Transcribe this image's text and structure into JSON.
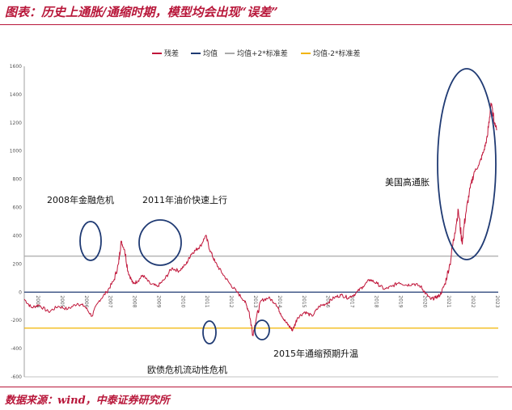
{
  "title": "图表：历史上通胀/通缩时期，模型均会出现“误差”",
  "source": "数据来源：wind，中泰证券研究所",
  "chart_data": {
    "type": "line",
    "ylim": [
      -600,
      1600
    ],
    "yticks": [
      -600,
      -400,
      -200,
      0,
      200,
      400,
      600,
      800,
      1000,
      1200,
      1400,
      1600
    ],
    "xlim": [
      2004,
      2023.6
    ],
    "xticks": [
      2004,
      2005,
      2006,
      2007,
      2008,
      2009,
      2010,
      2011,
      2012,
      2013,
      2014,
      2015,
      2016,
      2017,
      2018,
      2019,
      2020,
      2021,
      2022,
      2023
    ],
    "legend": [
      "残差",
      "均值",
      "均值+2*标准差",
      "均值-2*标准差"
    ],
    "legend_position": "top",
    "colors": {
      "residual": "#c0163a",
      "mean": "#1f3a73",
      "upper": "#aaaaaa",
      "lower": "#f2b400",
      "circle": "#1f3a73"
    },
    "mean": 0,
    "upper_band": 255,
    "lower_band": -255,
    "series": [
      {
        "name": "残差",
        "points": [
          [
            2004.0,
            -50
          ],
          [
            2004.3,
            -110
          ],
          [
            2004.6,
            -90
          ],
          [
            2005.0,
            -140
          ],
          [
            2005.4,
            -100
          ],
          [
            2005.8,
            -120
          ],
          [
            2006.2,
            -80
          ],
          [
            2006.5,
            -100
          ],
          [
            2006.8,
            -170
          ],
          [
            2007.1,
            -60
          ],
          [
            2007.4,
            0
          ],
          [
            2007.7,
            80
          ],
          [
            2007.9,
            200
          ],
          [
            2008.0,
            360
          ],
          [
            2008.15,
            300
          ],
          [
            2008.3,
            140
          ],
          [
            2008.5,
            60
          ],
          [
            2008.7,
            80
          ],
          [
            2008.9,
            120
          ],
          [
            2009.2,
            60
          ],
          [
            2009.5,
            40
          ],
          [
            2009.8,
            90
          ],
          [
            2010.1,
            170
          ],
          [
            2010.4,
            150
          ],
          [
            2010.7,
            200
          ],
          [
            2010.9,
            270
          ],
          [
            2011.1,
            300
          ],
          [
            2011.3,
            330
          ],
          [
            2011.5,
            400
          ],
          [
            2011.7,
            290
          ],
          [
            2011.9,
            210
          ],
          [
            2012.2,
            130
          ],
          [
            2012.5,
            60
          ],
          [
            2012.8,
            0
          ],
          [
            2013.1,
            -60
          ],
          [
            2013.3,
            -140
          ],
          [
            2013.45,
            -300
          ],
          [
            2013.6,
            -180
          ],
          [
            2013.8,
            -60
          ],
          [
            2014.1,
            -40
          ],
          [
            2014.4,
            -80
          ],
          [
            2014.6,
            -150
          ],
          [
            2014.8,
            -210
          ],
          [
            2015.0,
            -250
          ],
          [
            2015.1,
            -270
          ],
          [
            2015.3,
            -180
          ],
          [
            2015.6,
            -140
          ],
          [
            2015.9,
            -170
          ],
          [
            2016.2,
            -100
          ],
          [
            2016.5,
            -80
          ],
          [
            2016.8,
            -40
          ],
          [
            2017.1,
            -20
          ],
          [
            2017.4,
            -40
          ],
          [
            2017.7,
            -10
          ],
          [
            2018.0,
            40
          ],
          [
            2018.3,
            90
          ],
          [
            2018.6,
            60
          ],
          [
            2018.9,
            20
          ],
          [
            2019.2,
            40
          ],
          [
            2019.5,
            70
          ],
          [
            2019.8,
            50
          ],
          [
            2020.1,
            60
          ],
          [
            2020.4,
            40
          ],
          [
            2020.6,
            -10
          ],
          [
            2020.8,
            -50
          ],
          [
            2021.0,
            -40
          ],
          [
            2021.2,
            -20
          ],
          [
            2021.4,
            60
          ],
          [
            2021.6,
            200
          ],
          [
            2021.8,
            420
          ],
          [
            2021.95,
            580
          ],
          [
            2022.1,
            350
          ],
          [
            2022.25,
            550
          ],
          [
            2022.4,
            700
          ],
          [
            2022.6,
            850
          ],
          [
            2022.8,
            900
          ],
          [
            2023.0,
            1000
          ],
          [
            2023.15,
            1100
          ],
          [
            2023.3,
            1340
          ],
          [
            2023.45,
            1200
          ],
          [
            2023.55,
            1150
          ]
        ]
      }
    ],
    "annotations": [
      {
        "text": "2008年金融危机",
        "x": 2008.1,
        "y": 300
      },
      {
        "text": "2011年油价快速上行",
        "x": 2011.2,
        "y": 330
      },
      {
        "text": "欧债危机流动性危机",
        "x": 2013.4,
        "y": -300
      },
      {
        "text": "2015年通缩预期升温",
        "x": 2015.1,
        "y": -270
      },
      {
        "text": "美国高通胀",
        "x": 2022.6,
        "y": 900
      }
    ]
  }
}
